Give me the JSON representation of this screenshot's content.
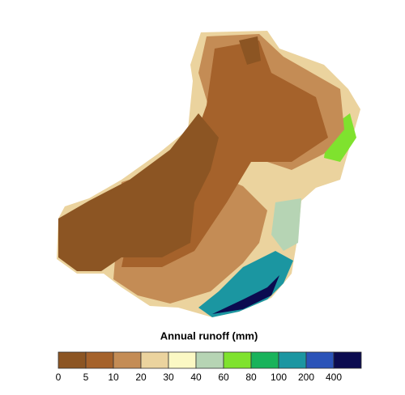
{
  "legend": {
    "title": "Annual runoff (mm)",
    "labels": [
      0,
      5,
      10,
      20,
      30,
      40,
      60,
      80,
      100,
      200,
      400
    ],
    "colors": [
      "#8c5523",
      "#a5622b",
      "#c48c55",
      "#ebd39e",
      "#fbf8c4",
      "#b6d4b4",
      "#7fe22e",
      "#19b35b",
      "#1b96a1",
      "#2b53b8",
      "#0b0b50"
    ]
  }
}
